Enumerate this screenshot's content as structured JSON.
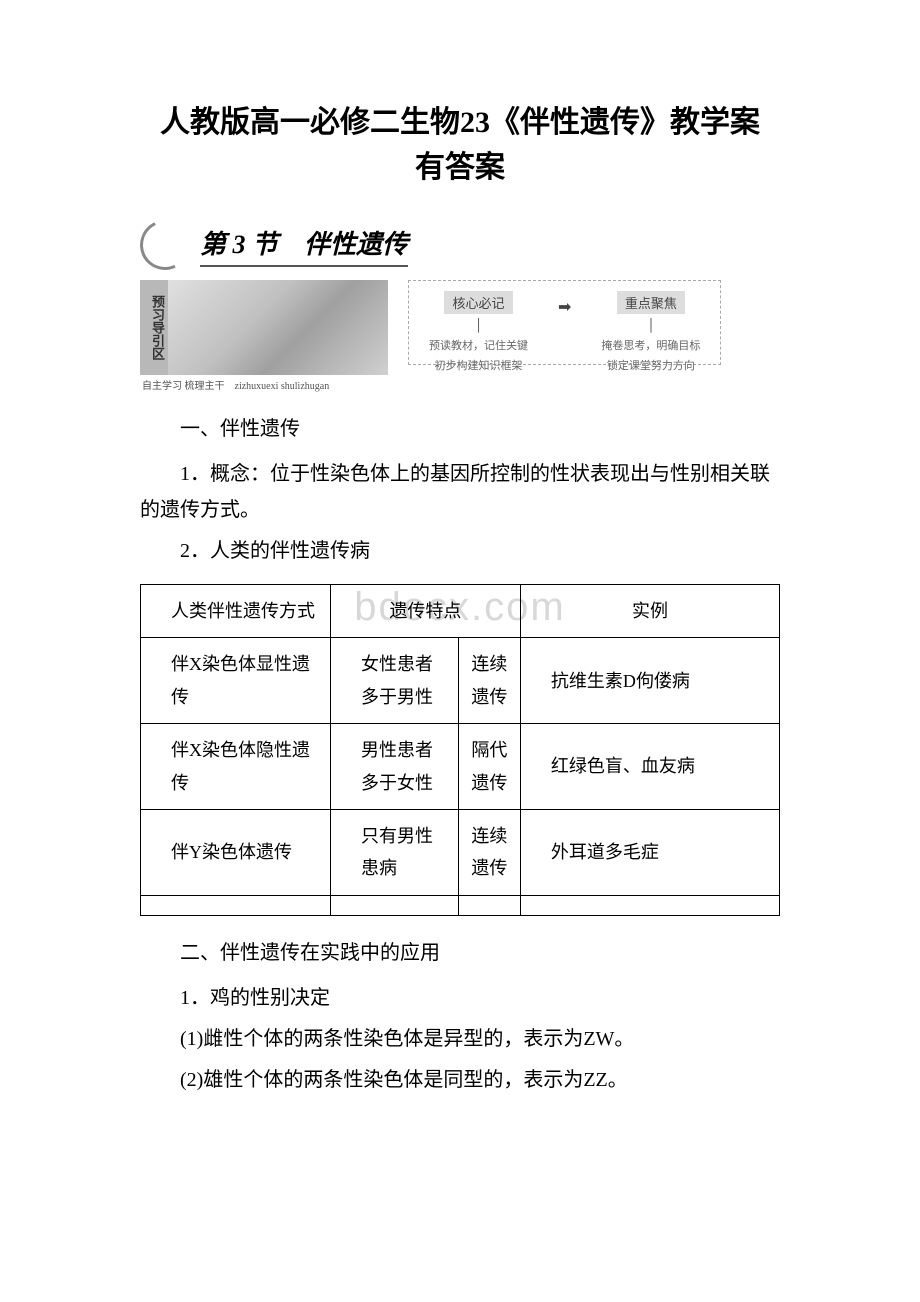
{
  "title": {
    "line1": "人教版高一必修二生物23《伴性遗传》教学案",
    "line2": "有答案"
  },
  "section_header": {
    "label": "第 3 节　伴性遗传"
  },
  "preview": {
    "tag": "预习导引区",
    "caption": "自主学习 梳理主干　zizhuxuexi shulizhugan",
    "left_col": {
      "title": "核心必记",
      "l1": "预读教材，记住关键",
      "l2": "初步构建知识框架"
    },
    "right_col": {
      "title": "重点聚焦",
      "l1": "掩卷思考，明确目标",
      "l2": "锁定课堂努力方向"
    }
  },
  "section1": {
    "heading": "一、伴性遗传",
    "p1": "1．概念：位于性染色体上的基因所控制的性状表现出与性别相关联的遗传方式。",
    "p2": "2．人类的伴性遗传病"
  },
  "table": {
    "header": {
      "c1": "人类伴性遗传方式",
      "c2": "遗传特点",
      "c3": "",
      "c4": "实例"
    },
    "rows": [
      {
        "c1": "伴X染色体显性遗传",
        "c2": "女性患者多于男性",
        "c3": "连续遗传",
        "c4": "抗维生素D佝偻病"
      },
      {
        "c1": "伴X染色体隐性遗传",
        "c2": "男性患者多于女性",
        "c3": "隔代遗传",
        "c4": "红绿色盲、血友病"
      },
      {
        "c1": "伴Y染色体遗传",
        "c2": "只有男性患病",
        "c3": "连续遗传",
        "c4": "外耳道多毛症"
      }
    ]
  },
  "section2": {
    "heading": "二、伴性遗传在实践中的应用",
    "p1": "1．鸡的性别决定",
    "p2": "(1)雌性个体的两条性染色体是异型的，表示为ZW。",
    "p3": "(2)雄性个体的两条性染色体是同型的，表示为ZZ。"
  },
  "watermark": "bdocx.com",
  "colors": {
    "text": "#000000",
    "border": "#000000",
    "watermark": "#d8d8d8",
    "bg": "#ffffff"
  }
}
